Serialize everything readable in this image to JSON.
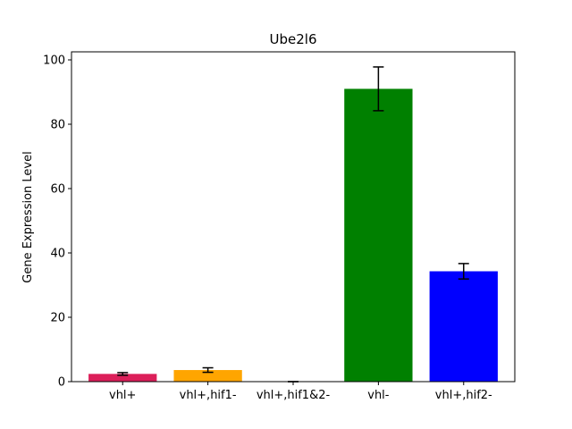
{
  "chart_data": {
    "type": "bar",
    "title": "Ube2l6",
    "xlabel": "",
    "ylabel": "Gene Expression Level",
    "categories": [
      "vhl+",
      "vhl+,hif1-",
      "vhl+,hif1&2-",
      "vhl-",
      "vhl+,hif2-"
    ],
    "values": [
      2.4,
      3.6,
      0,
      91.0,
      34.3
    ],
    "errors": [
      0.4,
      0.7,
      0,
      6.8,
      2.4
    ],
    "colors": [
      "#dc1f5a",
      "#ffa500",
      "#ffffff",
      "#008000",
      "#0000ff"
    ],
    "ylim": [
      0,
      102.5
    ],
    "yticks": [
      0,
      20,
      40,
      60,
      80,
      100
    ],
    "grid": false,
    "legend": "none"
  }
}
